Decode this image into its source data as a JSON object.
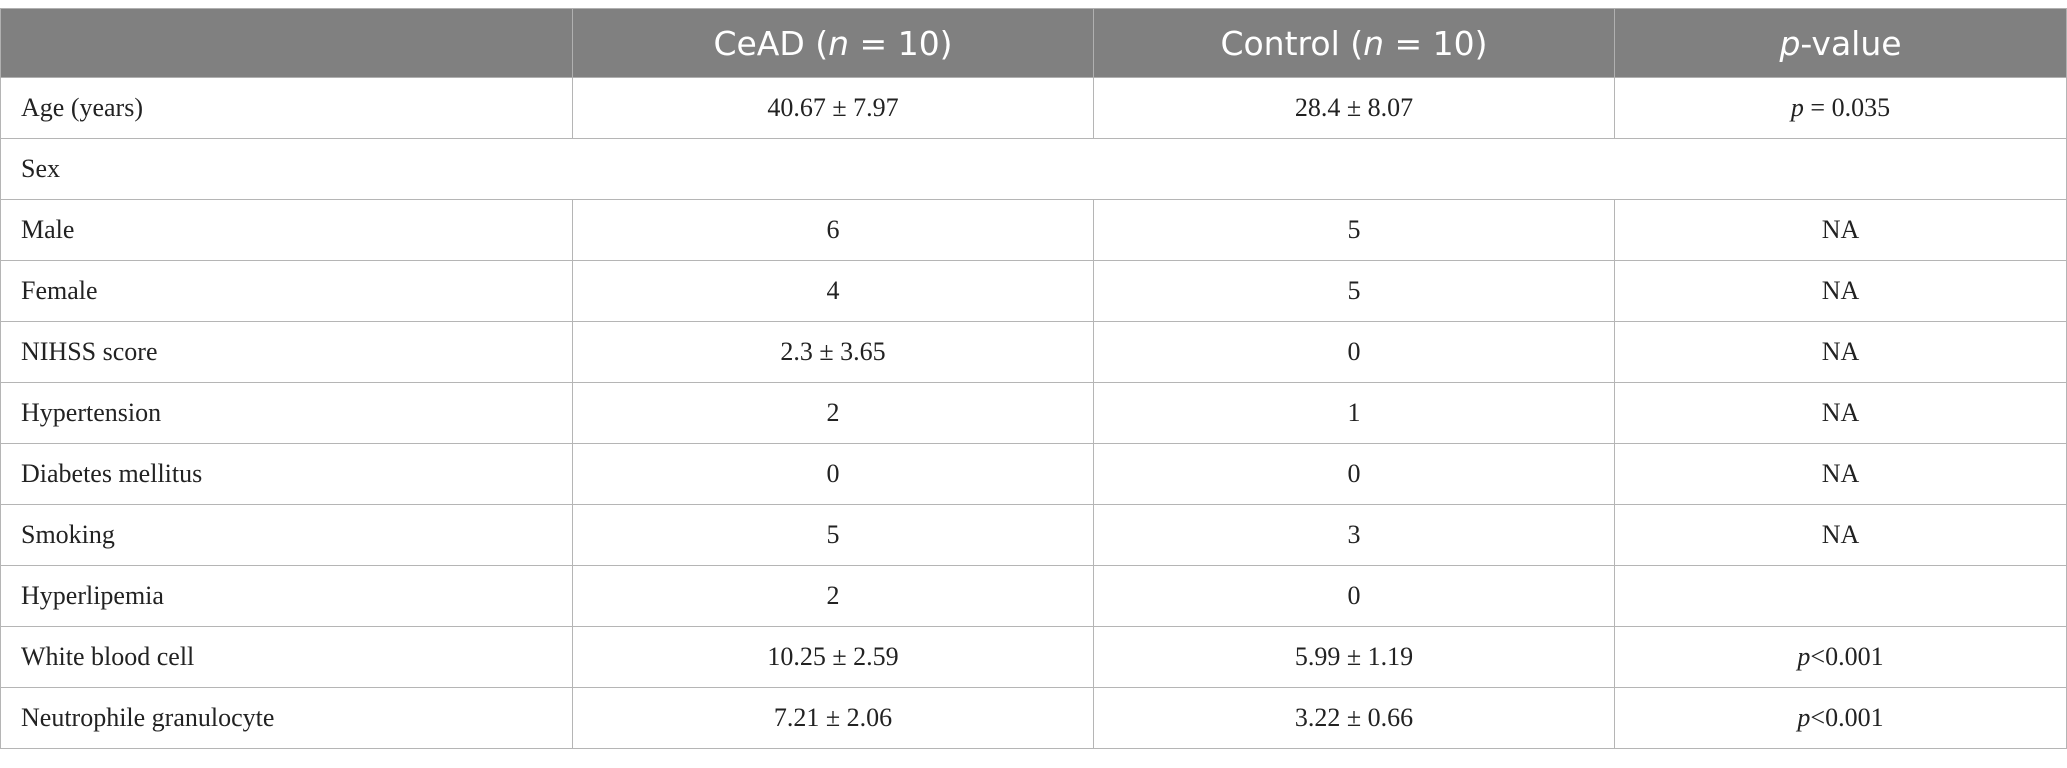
{
  "table": {
    "header": [
      "",
      [
        {
          "text": "CeAD ("
        },
        {
          "text": "n",
          "italic": true
        },
        {
          "text": " = 10)"
        }
      ],
      [
        {
          "text": "Control ("
        },
        {
          "text": "n",
          "italic": true
        },
        {
          "text": " = 10)"
        }
      ],
      [
        {
          "text": "p",
          "italic": true
        },
        {
          "text": "-value"
        }
      ]
    ],
    "rows": [
      [
        "Age (years)",
        "40.67 ± 7.97",
        "28.4 ± 8.07",
        [
          {
            "text": "p",
            "italic": true
          },
          {
            "text": " = 0.035"
          }
        ]
      ],
      [
        "Sex"
      ],
      [
        "Male",
        "6",
        "5",
        "NA"
      ],
      [
        "Female",
        "4",
        "5",
        "NA"
      ],
      [
        "NIHSS score",
        "2.3 ± 3.65",
        "0",
        "NA"
      ],
      [
        "Hypertension",
        "2",
        "1",
        "NA"
      ],
      [
        "Diabetes mellitus",
        "0",
        "0",
        "NA"
      ],
      [
        "Smoking",
        "5",
        "3",
        "NA"
      ],
      [
        "Hyperlipemia",
        "2",
        "0"
      ],
      [
        "White blood cell",
        "10.25 ± 2.59",
        "5.99 ± 1.19",
        [
          {
            "text": "p",
            "italic": true
          },
          {
            "text": "<0.001"
          }
        ]
      ],
      [
        "Neutrophile granulocyte",
        "7.21 ± 2.06",
        "3.22 ± 0.66",
        [
          {
            "text": "p",
            "italic": true
          },
          {
            "text": "<0.001"
          }
        ]
      ]
    ]
  }
}
